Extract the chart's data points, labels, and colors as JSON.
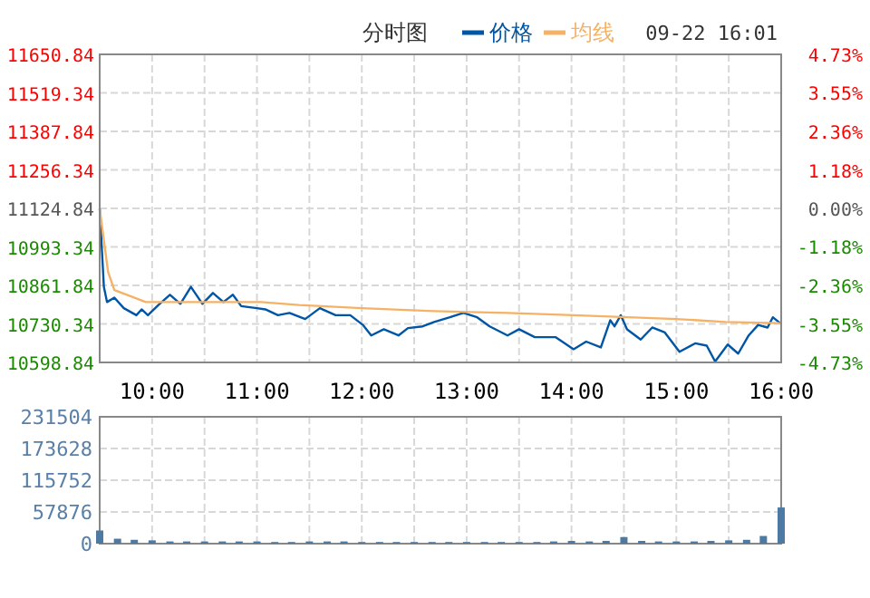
{
  "chart_data": [
    {
      "type": "line",
      "title": "分时图",
      "annotations": [
        "09-22 16:01"
      ],
      "legend": "top",
      "grid": true,
      "xlim": [
        9.5,
        16
      ],
      "xticks": [
        {
          "value": 10,
          "label": "10:00"
        },
        {
          "value": 10.5,
          "label": null
        },
        {
          "value": 11,
          "label": "11:00"
        },
        {
          "value": 11.5,
          "label": null
        },
        {
          "value": 12,
          "label": "12:00"
        },
        {
          "value": 12.5,
          "label": null
        },
        {
          "value": 13,
          "label": "13:00"
        },
        {
          "value": 13.5,
          "label": null
        },
        {
          "value": 14,
          "label": "14:00"
        },
        {
          "value": 14.5,
          "label": null
        },
        {
          "value": 15,
          "label": "15:00"
        },
        {
          "value": 15.5,
          "label": null
        },
        {
          "value": 16,
          "label": "16:00"
        }
      ],
      "ylim": [
        10598.84,
        11650.84
      ],
      "yticks": [
        10598.84,
        10730.34,
        10861.84,
        10993.34,
        11124.84,
        11256.34,
        11387.84,
        11519.34,
        11650.84
      ],
      "y2lim": [
        -4.73,
        4.73
      ],
      "y2ticks": [
        {
          "value": -4.73,
          "label": "-4.73%"
        },
        {
          "value": -3.55,
          "label": "-3.55%"
        },
        {
          "value": -2.36,
          "label": "-2.36%"
        },
        {
          "value": -1.18,
          "label": "-1.18%"
        },
        {
          "value": 0,
          "label": "0.00%"
        },
        {
          "value": 1.18,
          "label": "1.18%"
        },
        {
          "value": 2.36,
          "label": "2.36%"
        },
        {
          "value": 3.55,
          "label": "3.55%"
        },
        {
          "value": 4.73,
          "label": "4.73%"
        }
      ],
      "series": [
        {
          "name": "价格",
          "color": "#0055a5",
          "x": [
            9.5,
            9.54,
            9.57,
            9.64,
            9.73,
            9.85,
            9.9,
            9.96,
            10.06,
            10.17,
            10.27,
            10.37,
            10.48,
            10.58,
            10.68,
            10.77,
            10.85,
            11,
            11.08,
            11.2,
            11.31,
            11.46,
            11.6,
            11.75,
            11.89,
            12.01,
            12.09,
            12.21,
            12.35,
            12.44,
            12.58,
            12.69,
            12.84,
            12.97,
            13.1,
            13.22,
            13.39,
            13.5,
            13.65,
            13.85,
            14.02,
            14.14,
            14.28,
            14.37,
            14.41,
            14.47,
            14.53,
            14.66,
            14.77,
            14.89,
            15.03,
            15.18,
            15.29,
            15.37,
            15.49,
            15.59,
            15.69,
            15.78,
            15.87,
            15.92,
            15.99
          ],
          "values": [
            11124,
            10857,
            10805,
            10820,
            10784,
            10760,
            10780,
            10760,
            10795,
            10830,
            10799,
            10857,
            10799,
            10836,
            10805,
            10830,
            10791,
            10784,
            10780,
            10760,
            10768,
            10747,
            10784,
            10760,
            10760,
            10727,
            10691,
            10712,
            10691,
            10716,
            10722,
            10737,
            10753,
            10768,
            10753,
            10722,
            10691,
            10712,
            10685,
            10685,
            10644,
            10670,
            10650,
            10743,
            10722,
            10760,
            10712,
            10677,
            10718,
            10701,
            10635,
            10664,
            10656,
            10602,
            10660,
            10629,
            10691,
            10727,
            10718,
            10753,
            10733
          ]
        },
        {
          "name": "均线",
          "color": "#f5b266",
          "x": [
            9.5,
            9.58,
            9.64,
            9.94,
            10.35,
            11.04,
            11.4,
            12,
            12.69,
            13.39,
            14.02,
            15,
            15.47,
            15.99
          ],
          "values": [
            11124,
            10908,
            10846,
            10805,
            10805,
            10805,
            10795,
            10784,
            10774,
            10768,
            10760,
            10747,
            10737,
            10733
          ]
        }
      ]
    },
    {
      "type": "bar",
      "grid": true,
      "tick_labels": "y",
      "color": "#4d7aa3",
      "xlim": [
        9.5,
        16
      ],
      "xticks": [
        {
          "value": 10,
          "label": null
        },
        {
          "value": 10.5,
          "label": null
        },
        {
          "value": 11,
          "label": null
        },
        {
          "value": 11.5,
          "label": null
        },
        {
          "value": 12,
          "label": null
        },
        {
          "value": 12.5,
          "label": null
        },
        {
          "value": 13,
          "label": null
        },
        {
          "value": 13.5,
          "label": null
        },
        {
          "value": 14,
          "label": null
        },
        {
          "value": 14.5,
          "label": null
        },
        {
          "value": 15,
          "label": null
        },
        {
          "value": 15.5,
          "label": null
        },
        {
          "value": 16,
          "label": null
        }
      ],
      "ylim": [
        0,
        231504
      ],
      "yticks": [
        0,
        57876,
        115752,
        173628,
        231504
      ],
      "x": [
        9.5,
        9.67,
        9.83,
        10,
        10.17,
        10.33,
        10.5,
        10.67,
        10.83,
        11,
        11.17,
        11.33,
        11.5,
        11.67,
        11.83,
        12,
        12.17,
        12.33,
        12.5,
        12.67,
        12.83,
        13,
        13.17,
        13.33,
        13.5,
        13.67,
        13.83,
        14,
        14.17,
        14.33,
        14.5,
        14.67,
        14.83,
        15,
        15.17,
        15.33,
        15.5,
        15.67,
        15.83,
        16
      ],
      "values": [
        24000,
        9000,
        7000,
        6000,
        4000,
        4000,
        4000,
        4000,
        4000,
        4000,
        3000,
        3000,
        4000,
        4000,
        4000,
        3000,
        3000,
        3000,
        3000,
        3000,
        3000,
        3000,
        3000,
        3000,
        3000,
        3000,
        4000,
        5000,
        4000,
        5000,
        12000,
        5000,
        4000,
        4000,
        4000,
        5000,
        6000,
        7000,
        14000,
        66000
      ]
    }
  ]
}
